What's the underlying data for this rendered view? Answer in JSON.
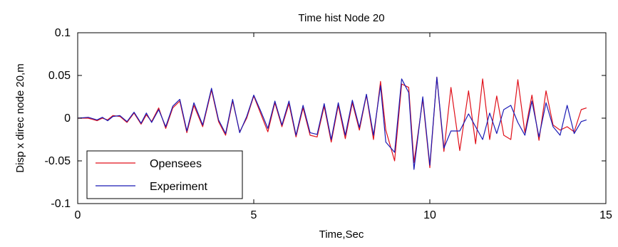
{
  "chart_data": {
    "type": "line",
    "title": "Time hist Node 20",
    "xlabel": "Time,Sec",
    "ylabel": "Disp x direc node 20,m",
    "xlim": [
      0,
      15
    ],
    "ylim": [
      -0.1,
      0.1
    ],
    "xticks": [
      0,
      5,
      10,
      15
    ],
    "xtick_labels": [
      "0",
      "5",
      "10",
      "15"
    ],
    "yticks": [
      0.1,
      0.05,
      0,
      -0.05,
      -0.1
    ],
    "ytick_labels": [
      "0.1",
      "0.05",
      "0",
      "-0.05",
      "-0.1"
    ],
    "grid": false,
    "legend_position": "bottom-left",
    "series": [
      {
        "name": "Opensees",
        "color": "#e0101a",
        "x": [
          0,
          0.3,
          0.55,
          0.7,
          0.85,
          1.0,
          1.2,
          1.4,
          1.6,
          1.8,
          1.95,
          2.1,
          2.3,
          2.5,
          2.7,
          2.9,
          3.1,
          3.3,
          3.55,
          3.8,
          4.0,
          4.2,
          4.4,
          4.6,
          4.8,
          5.0,
          5.2,
          5.4,
          5.6,
          5.8,
          6.0,
          6.2,
          6.4,
          6.6,
          6.8,
          7.0,
          7.2,
          7.4,
          7.6,
          7.8,
          8.0,
          8.2,
          8.4,
          8.6,
          8.75,
          9.0,
          9.2,
          9.4,
          9.55,
          9.8,
          10.0,
          10.2,
          10.4,
          10.6,
          10.85,
          11.1,
          11.3,
          11.5,
          11.7,
          11.9,
          12.1,
          12.3,
          12.5,
          12.7,
          12.9,
          13.1,
          13.3,
          13.5,
          13.7,
          13.9,
          14.1,
          14.3,
          14.45
        ],
        "values": [
          0,
          0,
          -0.003,
          0,
          -0.002,
          0.003,
          0.002,
          -0.005,
          0.006,
          -0.007,
          0.004,
          -0.004,
          0.012,
          -0.012,
          0.012,
          0.02,
          -0.017,
          0.015,
          -0.01,
          0.033,
          -0.004,
          -0.02,
          0.02,
          -0.016,
          0,
          0.026,
          0.005,
          -0.016,
          0.018,
          -0.01,
          0.017,
          -0.022,
          0.012,
          -0.02,
          -0.022,
          0.014,
          -0.028,
          0.015,
          -0.024,
          0.018,
          -0.014,
          0.027,
          -0.025,
          0.043,
          -0.014,
          -0.05,
          0.04,
          0.036,
          -0.052,
          0.022,
          -0.058,
          0.048,
          -0.039,
          0.036,
          -0.038,
          0.032,
          -0.03,
          0.046,
          -0.025,
          0.026,
          -0.02,
          -0.025,
          0.045,
          -0.017,
          0.027,
          -0.026,
          0.032,
          -0.008,
          -0.014,
          -0.01,
          -0.016,
          0.01,
          0.012
        ]
      },
      {
        "name": "Experiment",
        "color": "#1a1ab4",
        "x": [
          0,
          0.3,
          0.55,
          0.7,
          0.85,
          1.0,
          1.2,
          1.4,
          1.6,
          1.8,
          1.95,
          2.1,
          2.3,
          2.5,
          2.7,
          2.9,
          3.1,
          3.3,
          3.55,
          3.8,
          4.0,
          4.2,
          4.4,
          4.6,
          4.8,
          5.0,
          5.2,
          5.4,
          5.6,
          5.8,
          6.0,
          6.2,
          6.4,
          6.6,
          6.8,
          7.0,
          7.2,
          7.4,
          7.6,
          7.8,
          8.0,
          8.2,
          8.4,
          8.6,
          8.75,
          9.0,
          9.2,
          9.4,
          9.55,
          9.8,
          10.0,
          10.2,
          10.4,
          10.6,
          10.85,
          11.1,
          11.3,
          11.5,
          11.7,
          11.9,
          12.1,
          12.3,
          12.5,
          12.7,
          12.9,
          13.1,
          13.3,
          13.5,
          13.7,
          13.9,
          14.1,
          14.3,
          14.45
        ],
        "values": [
          0,
          0.001,
          -0.002,
          0.001,
          -0.003,
          0.002,
          0.003,
          -0.004,
          0.007,
          -0.006,
          0.006,
          -0.005,
          0.01,
          -0.01,
          0.014,
          0.022,
          -0.015,
          0.018,
          -0.008,
          0.035,
          -0.002,
          -0.018,
          0.022,
          -0.017,
          0.002,
          0.027,
          0.008,
          -0.012,
          0.02,
          -0.008,
          0.02,
          -0.02,
          0.015,
          -0.017,
          -0.019,
          0.017,
          -0.025,
          0.018,
          -0.02,
          0.021,
          -0.011,
          0.028,
          -0.02,
          0.038,
          -0.028,
          -0.04,
          0.046,
          0.03,
          -0.06,
          0.025,
          -0.055,
          0.048,
          -0.035,
          -0.015,
          -0.015,
          0.005,
          -0.01,
          -0.025,
          0.006,
          -0.018,
          0.01,
          0.015,
          -0.005,
          -0.02,
          0.02,
          -0.022,
          0.018,
          -0.01,
          -0.02,
          0.015,
          -0.018,
          -0.004,
          -0.002
        ]
      }
    ]
  }
}
